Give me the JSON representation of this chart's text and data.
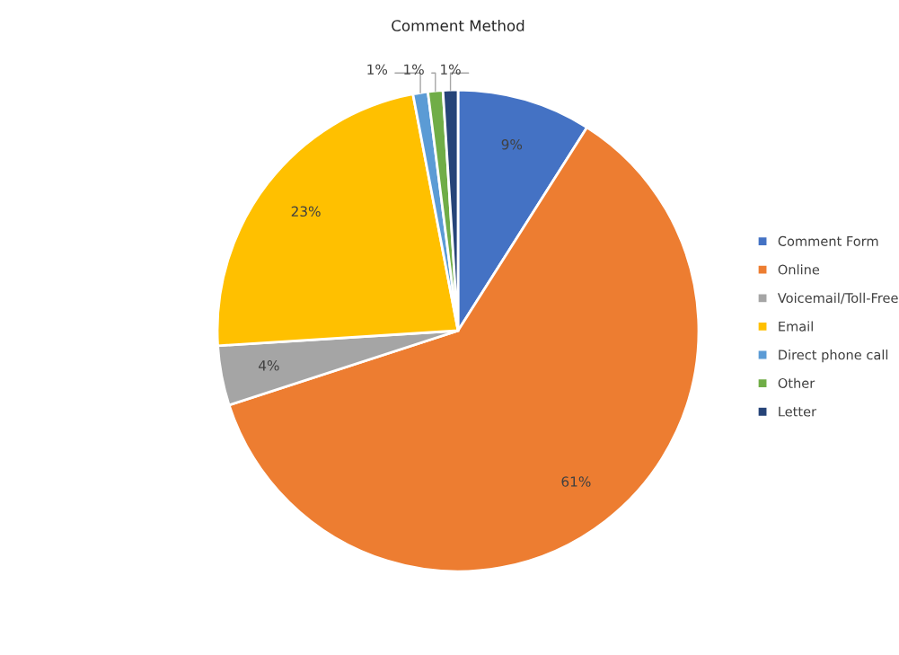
{
  "chart_data": {
    "type": "pie",
    "title": "Comment Method",
    "categories": [
      "Comment Form",
      "Online",
      "Voicemail/Toll-Free",
      "Email",
      "Direct phone call",
      "Other",
      "Letter"
    ],
    "values": [
      9,
      61,
      4,
      23,
      1,
      1,
      1
    ],
    "value_labels": [
      "9%",
      "61%",
      "4%",
      "23%",
      "1%",
      "1%",
      "1%"
    ],
    "colors": [
      "#4472c4",
      "#ed7d31",
      "#a5a5a5",
      "#ffc000",
      "#5b9bd5",
      "#70ad47",
      "#264478"
    ],
    "legend": "right"
  }
}
